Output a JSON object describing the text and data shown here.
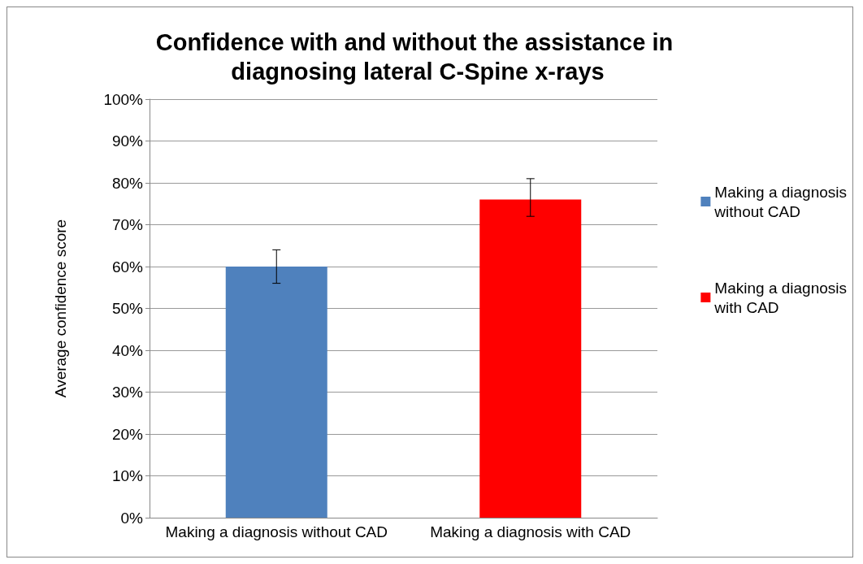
{
  "chart_data": {
    "type": "bar",
    "title": "Confidence with and without the assistance in diagnosing lateral C-Spine x-rays",
    "ylabel": "Average confidence score",
    "categories": [
      "Making a diagnosis without CAD",
      "Making a diagnosis with CAD"
    ],
    "series": [
      {
        "name": "Making a diagnosis without CAD",
        "color": "#4f81bd",
        "values": [
          60,
          null
        ],
        "errors": [
          [
            56,
            64
          ],
          null
        ]
      },
      {
        "name": "Making a diagnosis with CAD",
        "color": "#ff0000",
        "values": [
          null,
          76
        ],
        "errors": [
          null,
          [
            72,
            81
          ]
        ]
      }
    ],
    "ylim": [
      0,
      100
    ],
    "yticks": [
      {
        "value": 0,
        "label": "0%"
      },
      {
        "value": 10,
        "label": "10%"
      },
      {
        "value": 20,
        "label": "20%"
      },
      {
        "value": 30,
        "label": "30%"
      },
      {
        "value": 40,
        "label": "40%"
      },
      {
        "value": 50,
        "label": "50%"
      },
      {
        "value": 60,
        "label": "60%"
      },
      {
        "value": 70,
        "label": "70%"
      },
      {
        "value": 80,
        "label": "80%"
      },
      {
        "value": 90,
        "label": "90%"
      },
      {
        "value": 100,
        "label": "100%"
      }
    ],
    "grid": "y",
    "legend": "right"
  }
}
